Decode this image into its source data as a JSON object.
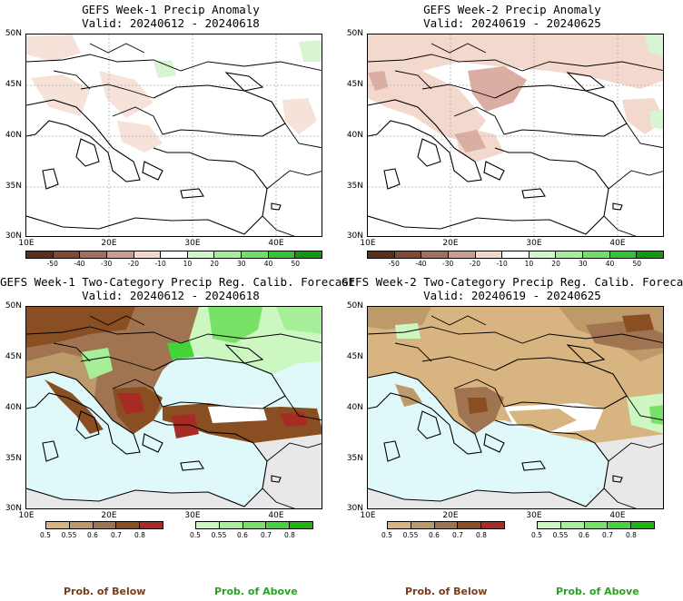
{
  "panels": [
    {
      "title_line1": "GEFS Week-1 Precip Anomaly",
      "title_line2": "Valid: 20240612 - 20240618"
    },
    {
      "title_line1": "GEFS Week-2 Precip Anomaly",
      "title_line2": "Valid: 20240619 - 20240625"
    },
    {
      "title_line1": "GEFS Week-1 Two-Category Precip Reg. Calib. Forecast",
      "title_line2": "Valid: 20240612 - 20240618"
    },
    {
      "title_line1": "GEFS Week-2 Two-Category Precip Reg. Calib. Forecast",
      "title_line2": "Valid: 20240619 - 20240625"
    }
  ],
  "lat_labels": [
    "50N",
    "45N",
    "40N",
    "35N",
    "30N"
  ],
  "lon_labels": [
    "10E",
    "20E",
    "30E",
    "40E"
  ],
  "anomaly_colorbar": {
    "labels": [
      "-50",
      "-40",
      "-30",
      "-20",
      "-10",
      "10",
      "20",
      "30",
      "40",
      "50"
    ],
    "colors": [
      "#5a3018",
      "#7e4a34",
      "#a26e5e",
      "#c89e92",
      "#f2d8cc",
      "#ffffff",
      "#d0f7cc",
      "#a6ee9e",
      "#6fdf66",
      "#34c431",
      "#119a10"
    ]
  },
  "prob_colorbar": {
    "below_labels": [
      "0.5",
      "0.55",
      "0.6",
      "0.7",
      "0.8"
    ],
    "below_colors": [
      "#d7b480",
      "#bd9a6a",
      "#a07450",
      "#8a4e23",
      "#a82a25"
    ],
    "above_labels": [
      "0.5",
      "0.55",
      "0.6",
      "0.7",
      "0.8"
    ],
    "above_colors": [
      "#ccf7c1",
      "#a6ee98",
      "#78e268",
      "#45d33c",
      "#1db414"
    ]
  },
  "footer": {
    "below_label": "Prob. of Below",
    "above_label": "Prob. of Above",
    "below_color": "#7a3b1b",
    "above_color": "#27a321"
  },
  "map_colors": {
    "sea": "#dff9fb",
    "nodata": "#e8e8e8",
    "coast": "#000000"
  }
}
